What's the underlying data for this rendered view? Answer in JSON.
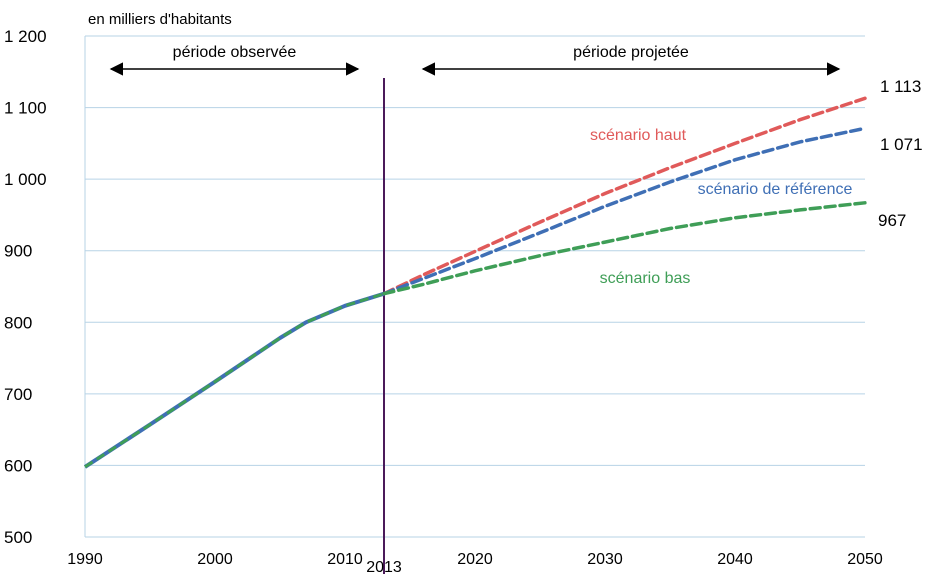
{
  "chart_data": {
    "type": "line",
    "unit_label": "en milliers d'habitants",
    "xlim": [
      1990,
      2050
    ],
    "ylim": [
      500,
      1200
    ],
    "x_ticks": [
      "1990",
      "2000",
      "2010",
      "2020",
      "2030",
      "2040",
      "2050"
    ],
    "y_ticks": [
      "500",
      "600",
      "700",
      "800",
      "900",
      "1 000",
      "1 100",
      "1 200"
    ],
    "grid": "horizontal",
    "divider": {
      "x": 2013,
      "label": "2013"
    },
    "periods": [
      {
        "label": "période observée",
        "from": 1992,
        "to": 2011
      },
      {
        "label": "période projetée",
        "from": 2016,
        "to": 2048
      }
    ],
    "colors": {
      "observed": "#3f9e57",
      "divider": "#4b1a5a",
      "grid": "#b7d3e6",
      "arrow": "#000000"
    },
    "observed": {
      "x": [
        1990,
        1995,
        2000,
        2005,
        2007,
        2010,
        2013
      ],
      "y": [
        598,
        657,
        717,
        778,
        800,
        823,
        840
      ]
    },
    "series": [
      {
        "name": "scénario haut",
        "color": "#e05a5a",
        "end_label": "1 113",
        "x": [
          2013,
          2016,
          2020,
          2025,
          2030,
          2035,
          2040,
          2045,
          2050
        ],
        "y": [
          840,
          866,
          899,
          940,
          980,
          1016,
          1050,
          1083,
          1113
        ]
      },
      {
        "name": "scénario de référence",
        "color": "#3f6fb5",
        "end_label": "1 071",
        "x": [
          2013,
          2016,
          2020,
          2025,
          2030,
          2035,
          2040,
          2045,
          2050
        ],
        "y": [
          840,
          861,
          889,
          925,
          962,
          996,
          1027,
          1052,
          1071
        ]
      },
      {
        "name": "scénario bas",
        "color": "#3f9e57",
        "end_label": "967",
        "x": [
          2013,
          2016,
          2020,
          2025,
          2030,
          2035,
          2040,
          2045,
          2050
        ],
        "y": [
          840,
          853,
          872,
          893,
          912,
          931,
          946,
          957,
          967
        ]
      }
    ]
  }
}
